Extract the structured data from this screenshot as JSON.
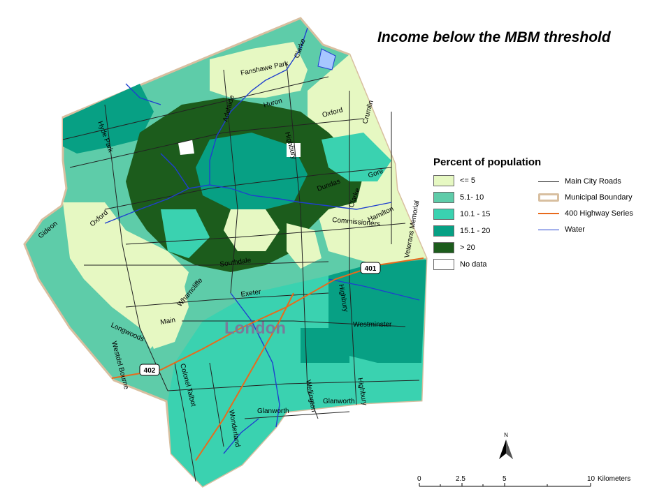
{
  "title": "Income below the MBM threshold",
  "legend": {
    "title": "Percent of population",
    "classes": [
      {
        "label": "<= 5",
        "color": "#e6f8c2"
      },
      {
        "label": "5.1- 10",
        "color": "#5ecca9"
      },
      {
        "label": "10.1 - 15",
        "color": "#3ad2b0"
      },
      {
        "label": "15.1 - 20",
        "color": "#07a084"
      },
      {
        "label": "> 20",
        "color": "#1c5c1c"
      },
      {
        "label": "No data",
        "color": "#ffffff"
      }
    ],
    "lines": [
      {
        "label": "Main City Roads",
        "color": "#222222"
      },
      {
        "label": "Municipal Boundary",
        "color": "#d8bfa0"
      },
      {
        "label": "400 Highway Series",
        "color": "#e86a1c"
      },
      {
        "label": "Water",
        "color": "#1f3fcf"
      }
    ]
  },
  "map": {
    "city_label": "London",
    "highway_shields": [
      "401",
      "402"
    ],
    "road_labels": [
      "Fanshawe Park",
      "Clarke",
      "Hyde Park",
      "Adelaide",
      "Huron",
      "Oxford",
      "Crumlin",
      "Highbury",
      "Gore",
      "Dundas",
      "Clarke",
      "Hamilton",
      "Veterans Memorial",
      "Commissioners",
      "Oxford",
      "Gideon",
      "Wharncliffe",
      "Southdale",
      "Exeter",
      "Main",
      "Longwoods",
      "Westdel Bourne",
      "Colonel Talbot",
      "Highbury",
      "Westminster",
      "Wellington",
      "Glanworth",
      "Glanworth",
      "Highbury",
      "Wonderland"
    ],
    "scale_bar": {
      "ticks": [
        "0",
        "2.5",
        "5",
        "10"
      ],
      "unit": "Kilometers"
    },
    "north_label": "N"
  }
}
